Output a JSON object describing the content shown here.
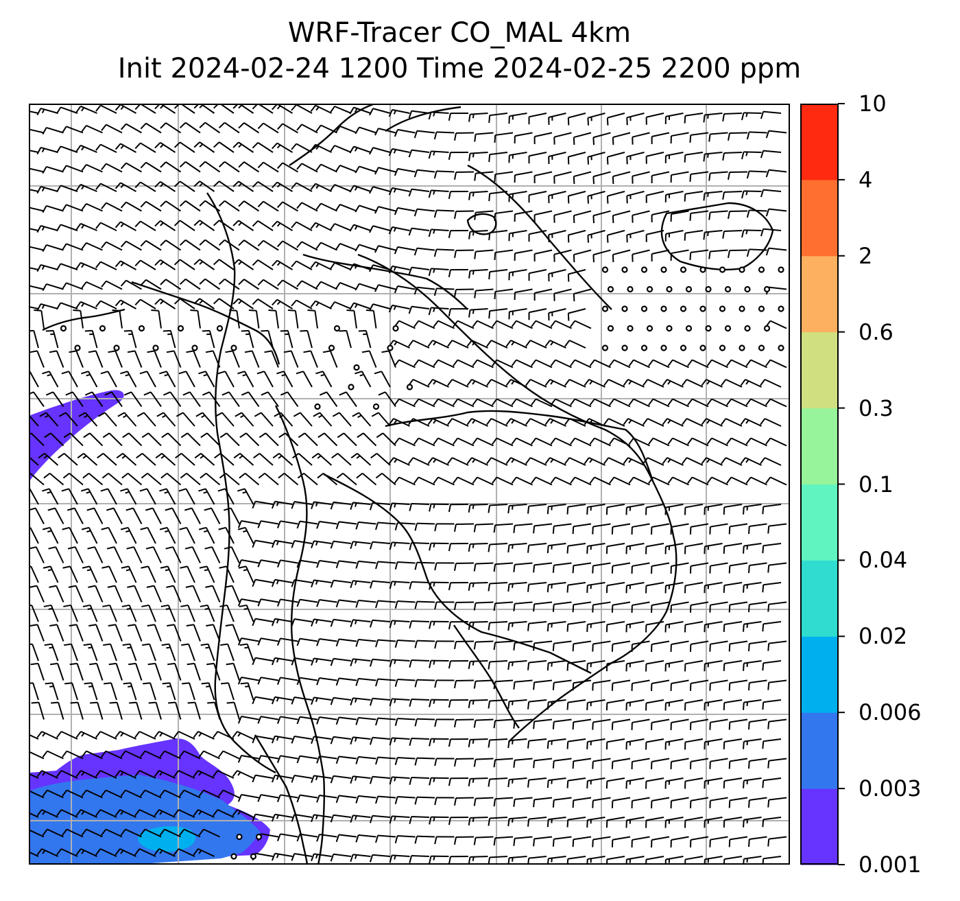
{
  "title": {
    "line1": "WRF-Tracer CO_MAL 4km",
    "line2": "Init 2024-02-24 1200 Time 2024-02-25 2200 ppm"
  },
  "colorbar": {
    "levels": [
      "0.001",
      "0.003",
      "0.006",
      "0.02",
      "0.04",
      "0.1",
      "0.3",
      "0.6",
      "2",
      "4",
      "10"
    ],
    "colors": [
      "#6633ff",
      "#3377ee",
      "#00b0ee",
      "#2fdcd0",
      "#60f5c0",
      "#98f49a",
      "#d0e080",
      "#fcb060",
      "#ff7030",
      "#ff2a10"
    ]
  },
  "map": {
    "layers": [
      "co-tracer-shading",
      "wind-barbs",
      "coastlines-borders",
      "lat-lon-gridlines"
    ],
    "gridline_color": "#b0b0b0",
    "barb_color": "#000000",
    "coast_color": "#000000"
  }
}
